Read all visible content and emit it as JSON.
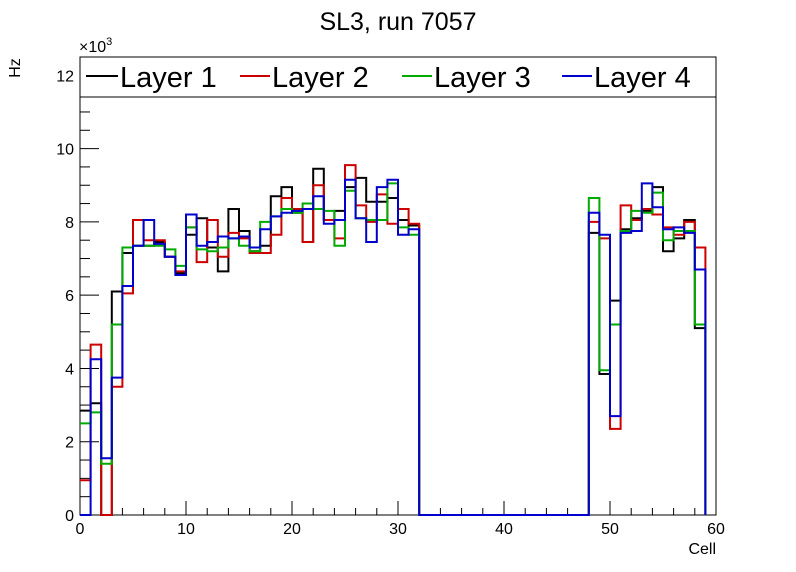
{
  "chart_data": {
    "type": "histogram-step",
    "title": "SL3, run 7057",
    "xlabel": "Cell",
    "ylabel": "Hz",
    "y_multiplier": "×10",
    "y_multiplier_exp": "3",
    "xlim": [
      0,
      60
    ],
    "ylim": [
      0,
      12.5
    ],
    "x_ticks": [
      0,
      10,
      20,
      30,
      40,
      50,
      60
    ],
    "y_ticks": [
      0,
      2,
      4,
      6,
      8,
      10,
      12
    ],
    "bin_width": 1,
    "legend_position": "top",
    "series": [
      {
        "name": "Layer 1",
        "color": "#000000",
        "values": [
          2.85,
          3.05,
          0.0,
          6.1,
          7.15,
          7.35,
          7.35,
          7.45,
          7.05,
          6.6,
          7.65,
          8.1,
          7.3,
          6.65,
          8.35,
          7.75,
          7.2,
          7.35,
          8.7,
          8.95,
          8.25,
          7.45,
          9.45,
          8.05,
          8.3,
          8.95,
          9.2,
          8.55,
          8.55,
          8.65,
          8.05,
          7.9,
          0,
          0,
          0,
          0,
          0,
          0,
          0,
          0,
          0,
          0,
          0,
          0,
          0,
          0,
          0,
          0,
          7.7,
          3.85,
          5.85,
          7.8,
          8.1,
          8.3,
          8.95,
          7.2,
          7.55,
          8.05,
          5.1
        ]
      },
      {
        "name": "Layer 2",
        "color": "#cc0000",
        "values": [
          0.95,
          4.65,
          0.0,
          3.5,
          6.05,
          8.05,
          7.5,
          7.5,
          7.05,
          6.65,
          7.85,
          6.9,
          8.05,
          7.05,
          7.7,
          7.55,
          7.15,
          7.15,
          7.65,
          8.65,
          8.35,
          7.45,
          9.0,
          8.05,
          7.55,
          9.55,
          8.45,
          8.0,
          8.75,
          7.95,
          8.35,
          7.95,
          0,
          0,
          0,
          0,
          0,
          0,
          0,
          0,
          0,
          0,
          0,
          0,
          0,
          0,
          0,
          0,
          8.0,
          7.55,
          2.35,
          8.45,
          8.05,
          8.35,
          8.2,
          7.85,
          7.65,
          8.0,
          7.3
        ]
      },
      {
        "name": "Layer 3",
        "color": "#00aa00",
        "values": [
          2.5,
          2.8,
          1.4,
          5.2,
          7.3,
          7.35,
          7.35,
          7.35,
          7.25,
          6.8,
          7.85,
          7.25,
          7.2,
          7.3,
          7.55,
          7.35,
          7.2,
          8.0,
          8.15,
          8.35,
          8.25,
          8.5,
          8.35,
          8.3,
          7.35,
          8.85,
          8.1,
          8.05,
          8.05,
          9.05,
          7.85,
          7.65,
          0,
          0,
          0,
          0,
          0,
          0,
          0,
          0,
          0,
          0,
          0,
          0,
          0,
          0,
          0,
          0,
          8.65,
          3.95,
          5.2,
          7.75,
          8.3,
          8.25,
          8.8,
          7.5,
          7.75,
          7.75,
          5.2
        ]
      },
      {
        "name": "Layer 4",
        "color": "#0000cc",
        "values": [
          0.0,
          4.25,
          1.55,
          3.75,
          6.25,
          7.35,
          8.05,
          7.4,
          7.05,
          6.55,
          8.2,
          7.35,
          7.45,
          7.6,
          7.55,
          7.6,
          7.3,
          7.8,
          8.15,
          8.25,
          8.3,
          8.35,
          8.7,
          7.95,
          8.05,
          9.15,
          8.1,
          7.45,
          8.95,
          9.15,
          7.65,
          7.8,
          0,
          0,
          0,
          0,
          0,
          0,
          0,
          0,
          0,
          0,
          0,
          0,
          0,
          0,
          0,
          0,
          8.25,
          7.65,
          2.7,
          7.7,
          7.75,
          9.05,
          8.4,
          7.8,
          7.85,
          7.7,
          6.7
        ]
      }
    ]
  }
}
